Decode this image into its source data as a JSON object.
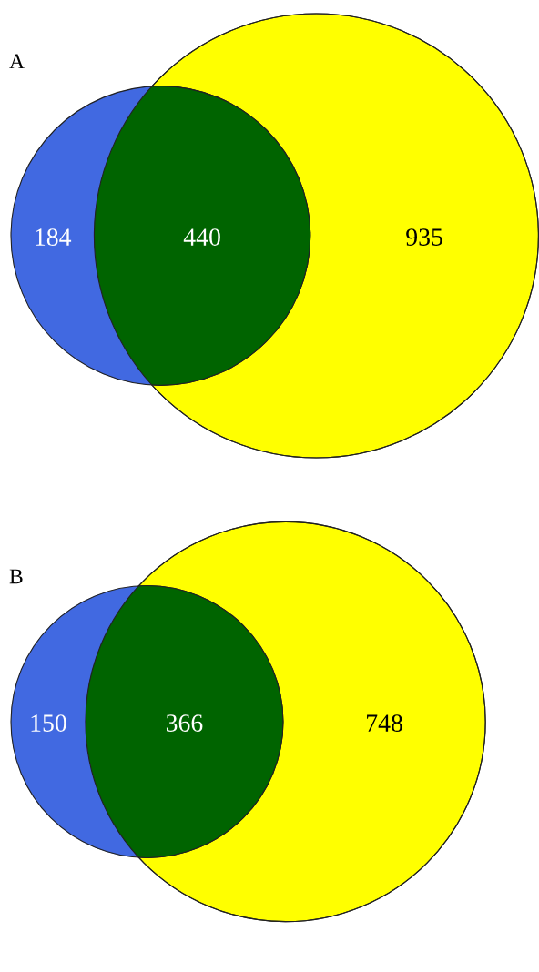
{
  "chart_data": [
    {
      "type": "other",
      "title": "A",
      "data_labels": true,
      "values": [
        184,
        440,
        935
      ],
      "colors": [
        "#4169e1",
        "#006400",
        "#ffff00"
      ]
    },
    {
      "type": "other",
      "title": "B",
      "data_labels": true,
      "values": [
        150,
        366,
        748
      ],
      "colors": [
        "#4169e1",
        "#006400",
        "#ffff00"
      ]
    }
  ]
}
